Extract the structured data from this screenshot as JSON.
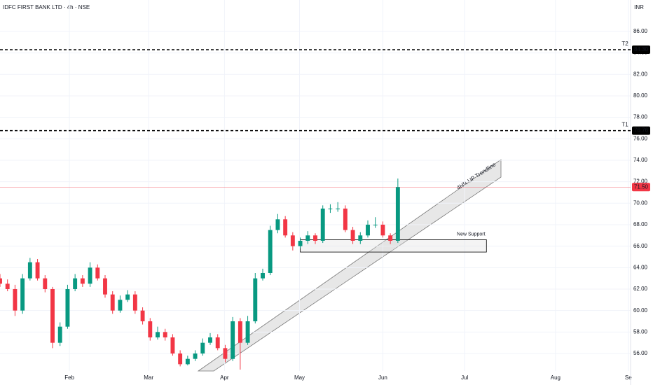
{
  "chart_data": {
    "type": "candlestick",
    "title": "IDFC FIRST BANK LTD · 4h · NSE",
    "currency": "INR",
    "up_color": "#089981",
    "down_color": "#f23645",
    "open": [
      63,
      62.5,
      62,
      60,
      63,
      64.5,
      63,
      62,
      57,
      58.5,
      62,
      63,
      62.5,
      64,
      63,
      61.5,
      60,
      61,
      61.5,
      60,
      59,
      57.5,
      58,
      57.5,
      56,
      55,
      55.5,
      56,
      57,
      57.5,
      56.5,
      55.5,
      59,
      57,
      59,
      63,
      63.5,
      67.5,
      68.5,
      67,
      66,
      66.5,
      67,
      66.5,
      69.5,
      69.5,
      69.5,
      67.5,
      66.5,
      67,
      68,
      68,
      67,
      66.5
    ],
    "high": [
      63.4,
      62.9,
      62.4,
      63.4,
      64.9,
      64.8,
      63.3,
      62.2,
      58.9,
      62.4,
      63.4,
      63.3,
      64.5,
      64.3,
      63.3,
      61.8,
      61.4,
      61.9,
      61.8,
      60.3,
      59.3,
      58.5,
      58.3,
      57.8,
      56.3,
      55.8,
      56.3,
      57.4,
      57.9,
      57.8,
      56.8,
      59.4,
      59.3,
      59.5,
      63.5,
      63.9,
      67.9,
      69,
      68.8,
      67.3,
      66.8,
      67.4,
      67.2,
      69.8,
      69.9,
      70.1,
      69.8,
      67.8,
      67.3,
      68.4,
      68.7,
      68.3,
      67.2,
      72.3
    ],
    "low": [
      62.2,
      61.8,
      59.5,
      59.7,
      62.8,
      62.8,
      61.7,
      56.5,
      56.7,
      58.3,
      61.8,
      62.2,
      62.2,
      62.8,
      61.2,
      59.7,
      59.8,
      60.8,
      59.7,
      58.7,
      57.2,
      57.3,
      57.2,
      55.8,
      54.8,
      54.9,
      55.3,
      55.8,
      56.8,
      56.3,
      55.2,
      55.3,
      54.5,
      56.8,
      58.8,
      62.8,
      63.3,
      67.2,
      66.8,
      65.6,
      65.8,
      66.2,
      66.2,
      66.3,
      69.1,
      69.2,
      67.3,
      66.2,
      66.2,
      66.8,
      67.7,
      66.8,
      66.2,
      66.3
    ],
    "close": [
      62.5,
      62,
      60,
      63,
      64.5,
      63,
      62,
      57,
      58.5,
      62,
      63,
      62.5,
      64,
      63,
      61.5,
      60,
      61,
      61.5,
      60,
      59,
      57.5,
      58,
      57.5,
      56,
      55,
      55.5,
      56,
      57,
      57.5,
      56.5,
      55.5,
      59,
      57,
      59,
      63,
      63.5,
      67.5,
      68.5,
      67,
      66,
      66.5,
      67,
      66.5,
      69.5,
      69.5,
      69.5,
      67.5,
      66.5,
      67,
      68,
      68,
      67,
      66.5,
      71.5
    ],
    "xlim": [
      0,
      84
    ],
    "xticks": [
      {
        "value": 9.25,
        "label": "Feb"
      },
      {
        "value": 19.8,
        "label": "Mar"
      },
      {
        "value": 29.9,
        "label": "Apr"
      },
      {
        "value": 39.9,
        "label": "May"
      },
      {
        "value": 51,
        "label": "Jun"
      },
      {
        "value": 61.9,
        "label": "Jul"
      },
      {
        "value": 74,
        "label": "Aug"
      },
      {
        "value": 83.7,
        "label": "Se"
      }
    ],
    "ylim": [
      54.37,
      88.93
    ],
    "yticks": [
      {
        "value": 56,
        "label": "56.00"
      },
      {
        "value": 58,
        "label": "58.00"
      },
      {
        "value": 60,
        "label": "60.00"
      },
      {
        "value": 62,
        "label": "62.00"
      },
      {
        "value": 64,
        "label": "64.00"
      },
      {
        "value": 66,
        "label": "66.00"
      },
      {
        "value": 68,
        "label": "68.00"
      },
      {
        "value": 70,
        "label": "70.00"
      },
      {
        "value": 72,
        "label": "72.00"
      },
      {
        "value": 74,
        "label": "74.00"
      },
      {
        "value": 76,
        "label": "76.00"
      },
      {
        "value": 78,
        "label": "78.00"
      },
      {
        "value": 80,
        "label": "80.00"
      },
      {
        "value": 82,
        "label": "82.00"
      },
      {
        "value": 84,
        "label": "84.00"
      },
      {
        "value": 86,
        "label": "86.00"
      }
    ],
    "grid": true,
    "levels": [
      {
        "name": "T2",
        "value": 84.3,
        "label": "84.30"
      },
      {
        "name": "T1",
        "value": 76.76,
        "label": "76.76"
      }
    ],
    "level_color": "#000000",
    "annotation_color": "#f7a21b",
    "last_price": {
      "value": 71.5,
      "label": "71.50"
    },
    "trendline_label": "4HR UP Trendline",
    "support": {
      "name": "New Support",
      "range": [
        65.45,
        66.6
      ],
      "x_range": [
        40,
        64.8
      ]
    }
  }
}
